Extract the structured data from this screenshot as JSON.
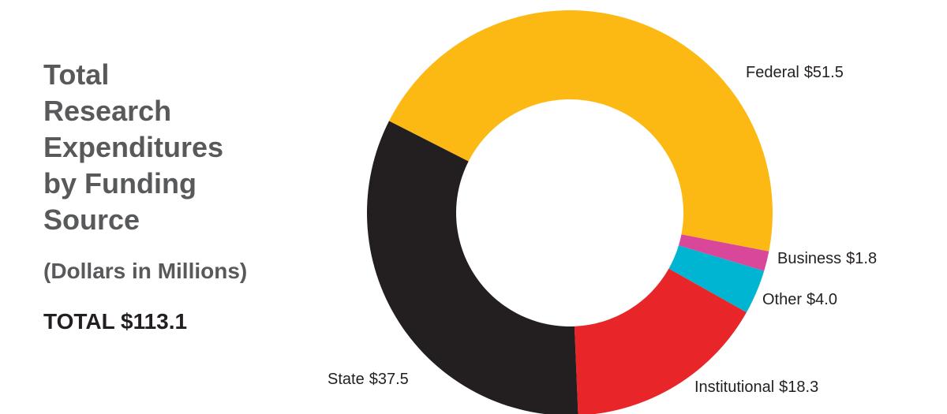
{
  "chart_data": {
    "type": "donut",
    "title": "Total Research Expenditures by Funding Source",
    "subtitle": "(Dollars in Millions)",
    "annotation": "TOTAL $113.1",
    "categories": [
      "Federal",
      "Business",
      "Other",
      "Institutional",
      "State"
    ],
    "values": [
      51.5,
      1.8,
      4.0,
      18.3,
      37.5
    ],
    "value_labels": [
      "$51.5",
      "$1.8",
      "$4.0",
      "$18.3",
      "$37.5"
    ],
    "colors": [
      "#fdb913",
      "#d9479b",
      "#00b5d1",
      "#e8262a",
      "#231f20"
    ]
  }
}
